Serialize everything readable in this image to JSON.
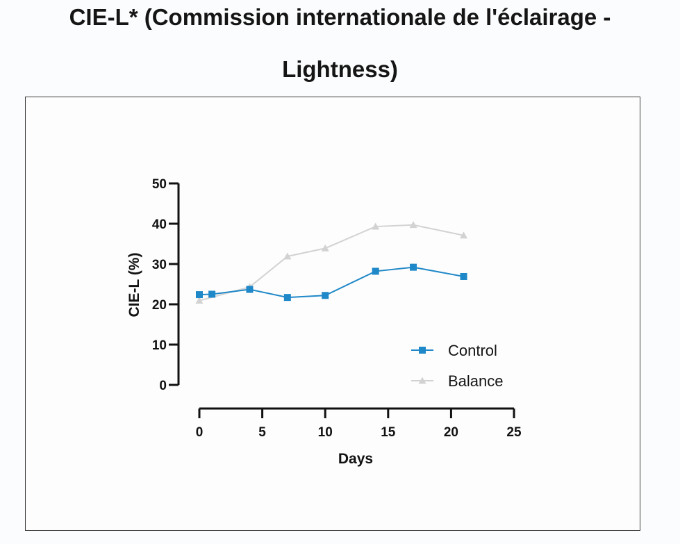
{
  "page": {
    "title_line1": "CIE-L* (Commission internationale de l'éclairage -",
    "title_line2": "Lightness)"
  },
  "chart_data": {
    "type": "line",
    "title": "CIE-L* (Commission internationale de l'éclairage - Lightness)",
    "xlabel": "Days",
    "ylabel": "CIE-L (%)",
    "xlim": [
      0,
      25
    ],
    "ylim": [
      0,
      50
    ],
    "x_ticks": [
      "0",
      "5",
      "10",
      "15",
      "20",
      "25"
    ],
    "y_ticks": [
      "0",
      "10",
      "20",
      "30",
      "40",
      "50"
    ],
    "legend_position": "right",
    "grid": false,
    "series": [
      {
        "name": "Control",
        "color": "#1f88c8",
        "marker": "square",
        "x": [
          0,
          1,
          4,
          7,
          10,
          14,
          17,
          21
        ],
        "values": [
          22.4,
          22.5,
          23.7,
          21.7,
          22.2,
          28.2,
          29.2,
          26.9
        ]
      },
      {
        "name": "Balance",
        "color": "#d2d2d2",
        "marker": "triangle",
        "x": [
          0,
          4,
          7,
          10,
          14,
          17,
          21
        ],
        "values": [
          20.9,
          24.3,
          31.9,
          33.9,
          39.3,
          39.7,
          37.1
        ]
      }
    ]
  }
}
